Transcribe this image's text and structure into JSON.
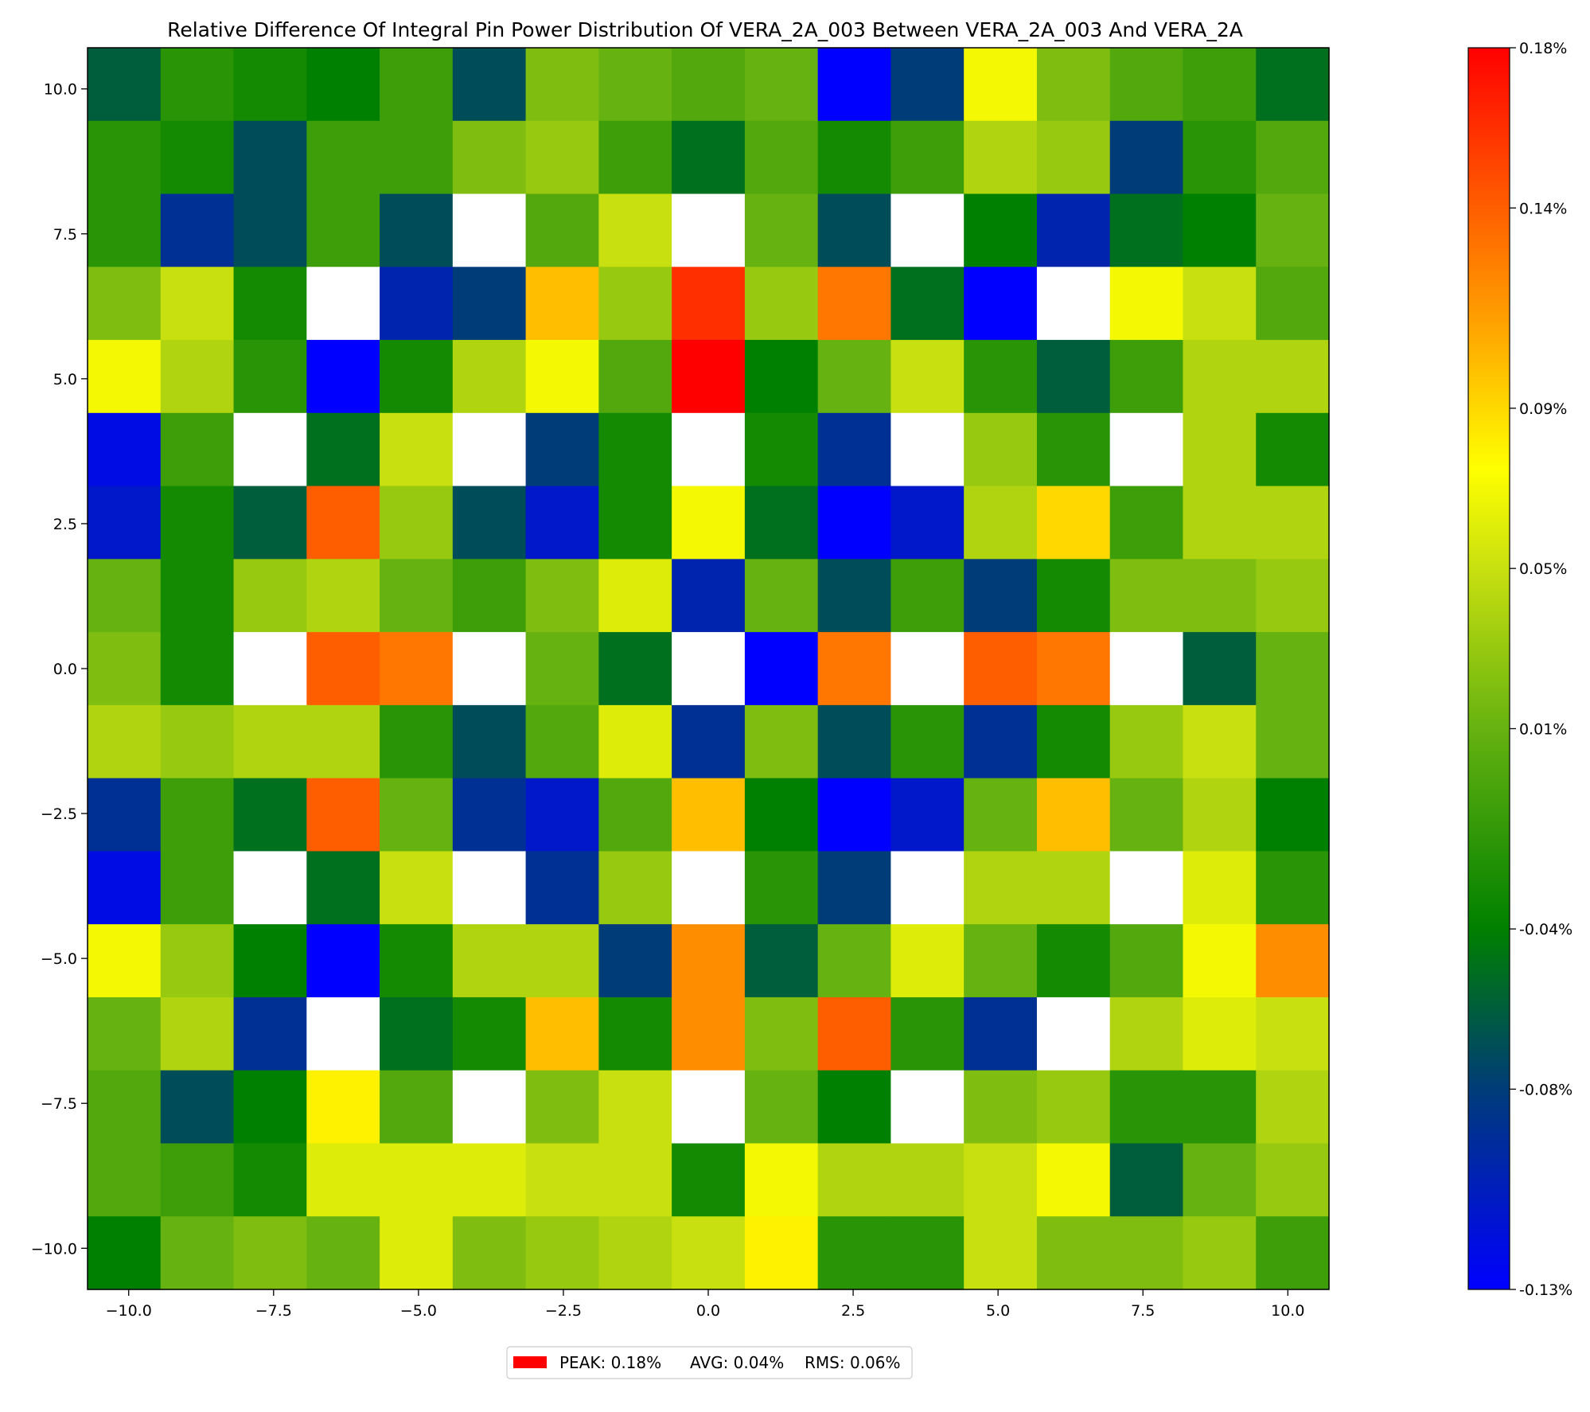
{
  "chart_data": {
    "type": "heatmap",
    "title": "Relative Difference Of Integral Pin Power Distribution Of VERA_2A_003 Between VERA_2A_003 And VERA_2A",
    "xlabel": "",
    "ylabel": "",
    "x_range": [
      -10.71,
      10.71
    ],
    "y_range": [
      -10.71,
      10.71
    ],
    "grid_size": 17,
    "cell_pitch": 1.26,
    "cell_centers": [
      -10.08,
      -8.82,
      -7.56,
      -6.3,
      -5.04,
      -3.78,
      -2.52,
      -1.26,
      0.0,
      1.26,
      2.52,
      3.78,
      5.04,
      6.3,
      7.56,
      8.82,
      10.08
    ],
    "x_ticks": [
      -10.0,
      -7.5,
      -5.0,
      -2.5,
      0.0,
      2.5,
      5.0,
      7.5,
      10.0
    ],
    "x_tick_labels": [
      "−10.0",
      "−7.5",
      "−5.0",
      "−2.5",
      "0.0",
      "2.5",
      "5.0",
      "7.5",
      "10.0"
    ],
    "y_ticks": [
      10.0,
      7.5,
      5.0,
      2.5,
      0.0,
      -2.5,
      -5.0,
      -7.5,
      -10.0
    ],
    "y_tick_labels": [
      "10.0",
      "7.5",
      "5.0",
      "2.5",
      "0.0",
      "−2.5",
      "−5.0",
      "−7.5",
      "−10.0"
    ],
    "units": "%",
    "guide_tube_value": null,
    "values_percent": [
      [
        -0.06,
        -0.02,
        -0.03,
        -0.04,
        -0.01,
        -0.07,
        0.02,
        0.01,
        0.0,
        0.01,
        -0.13,
        -0.08,
        0.07,
        0.02,
        0.0,
        -0.01,
        -0.05
      ],
      [
        -0.02,
        -0.03,
        -0.07,
        -0.01,
        -0.01,
        0.02,
        0.03,
        -0.01,
        -0.05,
        0.0,
        -0.03,
        -0.01,
        0.04,
        0.03,
        -0.08,
        -0.02,
        0.0
      ],
      [
        -0.02,
        -0.09,
        -0.07,
        -0.01,
        -0.07,
        null,
        0.0,
        0.05,
        null,
        0.01,
        -0.07,
        null,
        -0.04,
        -0.1,
        -0.05,
        -0.04,
        0.01
      ],
      [
        0.02,
        0.05,
        -0.03,
        null,
        -0.1,
        -0.08,
        0.1,
        0.03,
        0.16,
        0.03,
        0.13,
        -0.05,
        -0.13,
        null,
        0.07,
        0.05,
        0.0
      ],
      [
        0.07,
        0.04,
        -0.02,
        -0.13,
        -0.03,
        0.04,
        0.07,
        0.0,
        0.18,
        -0.04,
        0.01,
        0.05,
        -0.02,
        -0.06,
        -0.01,
        0.04,
        0.04
      ],
      [
        -0.12,
        -0.01,
        null,
        -0.05,
        0.05,
        null,
        -0.08,
        -0.03,
        null,
        -0.03,
        -0.09,
        null,
        0.03,
        -0.02,
        null,
        0.04,
        -0.03
      ],
      [
        -0.11,
        -0.03,
        -0.06,
        0.14,
        0.03,
        -0.07,
        -0.11,
        -0.03,
        0.07,
        -0.05,
        -0.13,
        -0.11,
        0.04,
        0.09,
        -0.01,
        0.04,
        0.04
      ],
      [
        0.01,
        -0.03,
        0.03,
        0.04,
        0.01,
        -0.01,
        0.02,
        0.06,
        -0.1,
        0.01,
        -0.07,
        -0.01,
        -0.08,
        -0.03,
        0.02,
        0.02,
        0.03
      ],
      [
        0.02,
        -0.03,
        null,
        0.14,
        0.13,
        null,
        0.01,
        -0.05,
        null,
        -0.13,
        0.13,
        null,
        0.14,
        0.13,
        null,
        -0.06,
        0.01
      ],
      [
        0.04,
        0.03,
        0.04,
        0.04,
        -0.02,
        -0.07,
        0.0,
        0.06,
        -0.09,
        0.02,
        -0.07,
        -0.02,
        -0.09,
        -0.03,
        0.03,
        0.05,
        0.01
      ],
      [
        -0.09,
        -0.01,
        -0.05,
        0.14,
        0.01,
        -0.09,
        -0.11,
        0.0,
        0.1,
        -0.04,
        -0.13,
        -0.11,
        0.01,
        0.1,
        0.01,
        0.04,
        -0.04
      ],
      [
        -0.12,
        -0.01,
        null,
        -0.05,
        0.05,
        null,
        -0.09,
        0.03,
        null,
        -0.02,
        -0.08,
        null,
        0.04,
        0.04,
        null,
        0.06,
        -0.02
      ],
      [
        0.07,
        0.03,
        -0.04,
        -0.13,
        -0.03,
        0.04,
        0.04,
        -0.08,
        0.12,
        -0.06,
        0.01,
        0.06,
        0.01,
        -0.03,
        0.0,
        0.07,
        0.12
      ],
      [
        0.01,
        0.04,
        -0.09,
        null,
        -0.05,
        -0.03,
        0.1,
        -0.03,
        0.12,
        0.02,
        0.14,
        -0.02,
        -0.09,
        null,
        0.04,
        0.06,
        0.05
      ],
      [
        0.0,
        -0.07,
        -0.04,
        0.08,
        0.0,
        null,
        0.02,
        0.05,
        null,
        0.01,
        -0.04,
        null,
        0.02,
        0.03,
        -0.02,
        -0.02,
        0.04
      ],
      [
        0.0,
        -0.01,
        -0.03,
        0.06,
        0.06,
        0.06,
        0.05,
        0.05,
        -0.03,
        0.07,
        0.04,
        0.04,
        0.05,
        0.07,
        -0.06,
        0.01,
        0.03
      ],
      [
        -0.04,
        0.01,
        0.02,
        0.01,
        0.06,
        0.02,
        0.03,
        0.04,
        0.05,
        0.08,
        -0.02,
        -0.02,
        0.05,
        0.02,
        0.02,
        0.03,
        -0.01
      ]
    ],
    "colorbar": {
      "min": -0.13,
      "max": 0.18,
      "tick_values": [
        0.18,
        0.14,
        0.09,
        0.05,
        0.01,
        -0.04,
        -0.08,
        -0.13
      ],
      "tick_labels": [
        "0.18%",
        "0.14%",
        "0.09%",
        "0.05%",
        "0.01%",
        "-0.04%",
        "-0.08%",
        "-0.13%"
      ],
      "stops": [
        {
          "value": -0.13,
          "color": "#0000ff"
        },
        {
          "value": -0.08,
          "color": "#003c78"
        },
        {
          "value": -0.04,
          "color": "#008000"
        },
        {
          "value": 0.01,
          "color": "#66b210"
        },
        {
          "value": 0.05,
          "color": "#c8e010"
        },
        {
          "value": 0.075,
          "color": "#ffff00"
        },
        {
          "value": 0.11,
          "color": "#ffa500"
        },
        {
          "value": 0.18,
          "color": "#ff0000"
        }
      ]
    },
    "legend": {
      "placement": "bottom-center",
      "swatch_color": "#ff0000",
      "peak_label": "PEAK: 0.18%",
      "avg_label": "AVG: 0.04%",
      "rms_label": "RMS: 0.06%"
    }
  }
}
